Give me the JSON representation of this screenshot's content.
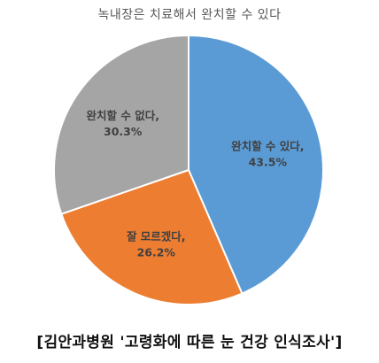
{
  "chart_data": {
    "type": "pie",
    "title": "녹내장은 치료해서 완치할 수 있다",
    "slices": [
      {
        "label": "완치할 수 있다,",
        "value": 43.5,
        "value_label": "43.5%",
        "color": "#5B9BD5"
      },
      {
        "label": "잘 모르겠다,",
        "value": 26.2,
        "value_label": "26.2%",
        "color": "#ED7D31"
      },
      {
        "label": "완치할 수 없다,",
        "value": 30.3,
        "value_label": "30.3%",
        "color": "#A5A5A5"
      }
    ],
    "start_angle": "12 o'clock",
    "direction": "clockwise",
    "legend": "none"
  },
  "footer": {
    "caption": "[김안과병원 '고령화에 따른 눈 건강 인식조사']"
  }
}
